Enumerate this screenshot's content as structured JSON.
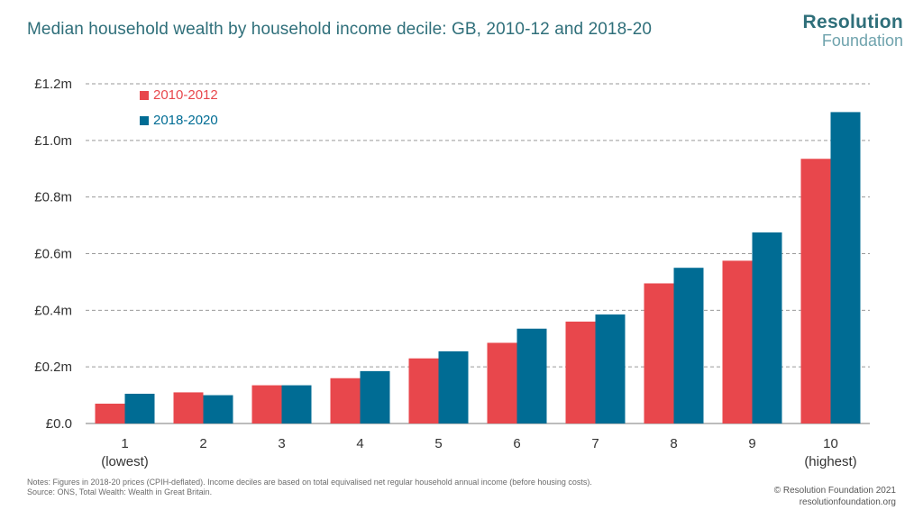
{
  "header": {
    "title": "Median household wealth by household income decile: GB, 2010-12 and 2018-20",
    "logo_line1": "Resolution",
    "logo_line2": "Foundation"
  },
  "chart_data": {
    "type": "bar",
    "title": "Median household wealth by household income decile: GB, 2010-12 and 2018-20",
    "categories": [
      "1",
      "2",
      "3",
      "4",
      "5",
      "6",
      "7",
      "8",
      "9",
      "10"
    ],
    "category_sublabels": [
      "(lowest)",
      "",
      "",
      "",
      "",
      "",
      "",
      "",
      "",
      "(highest)"
    ],
    "series": [
      {
        "name": "2010-2012",
        "color": "#e8474c",
        "values": [
          0.07,
          0.11,
          0.135,
          0.16,
          0.23,
          0.285,
          0.36,
          0.495,
          0.575,
          0.935
        ]
      },
      {
        "name": "2018-2020",
        "color": "#006c94",
        "values": [
          0.105,
          0.1,
          0.135,
          0.185,
          0.255,
          0.335,
          0.385,
          0.55,
          0.675,
          1.1
        ]
      }
    ],
    "ylim": [
      0,
      1.2
    ],
    "yticks": [
      {
        "value": 0.0,
        "label": "£0.0"
      },
      {
        "value": 0.2,
        "label": "£0.2m"
      },
      {
        "value": 0.4,
        "label": "£0.4m"
      },
      {
        "value": 0.6,
        "label": "£0.6m"
      },
      {
        "value": 0.8,
        "label": "£0.8m"
      },
      {
        "value": 1.0,
        "label": "£1.0m"
      },
      {
        "value": 1.2,
        "label": "£1.2m"
      }
    ],
    "grid": "dashed-horizontal",
    "legend_position": "top-left",
    "xlabel": "",
    "ylabel": ""
  },
  "notes": {
    "line1": "Notes: Figures in 2018-20 prices (CPIH-deflated). Income deciles are based on total equivalised net regular household annual income (before housing costs).",
    "line2": "Source: ONS, Total Wealth: Wealth in Great Britain."
  },
  "footer": {
    "copyright": "© Resolution Foundation 2021",
    "website": "resolutionfoundation.org"
  }
}
